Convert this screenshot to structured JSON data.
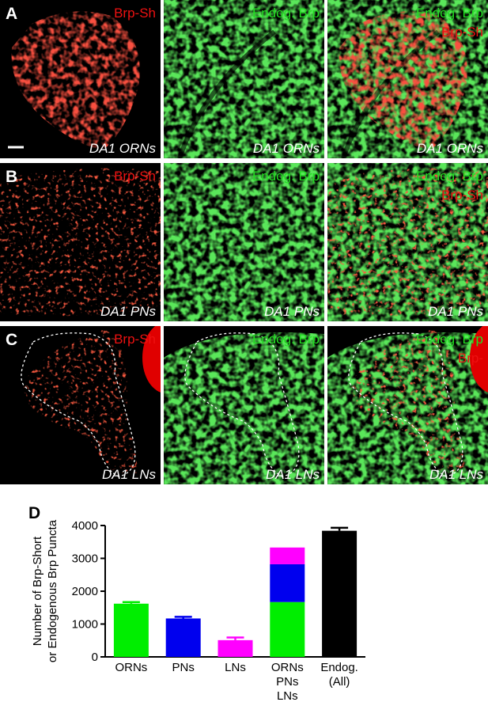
{
  "panels": [
    {
      "label": "A",
      "cells": [
        {
          "top": [
            "Brp-Sh"
          ],
          "bottom": "DA1 ORNs"
        },
        {
          "top": [
            "Endog. Brp"
          ],
          "bottom": "DA1 ORNs"
        },
        {
          "top": [
            "Endog. Brp",
            "Brp-Sh"
          ],
          "bottom": "DA1 ORNs"
        }
      ]
    },
    {
      "label": "B",
      "cells": [
        {
          "top": [
            "Brp-Sh"
          ],
          "bottom": "DA1 PNs"
        },
        {
          "top": [
            "Endog. Brp"
          ],
          "bottom": "DA1 PNs"
        },
        {
          "top": [
            "Endog. Brp",
            "Brp-Sh"
          ],
          "bottom": "DA1 PNs"
        }
      ]
    },
    {
      "label": "C",
      "cells": [
        {
          "top": [
            "Brp-Sh"
          ],
          "bottom": "DA1 LNs"
        },
        {
          "top": [
            "Endog. Brp"
          ],
          "bottom": "DA1 LNs"
        },
        {
          "top": [
            "Endog. Brp",
            "Brp-"
          ],
          "bottom": "DA1 LNs"
        }
      ]
    }
  ],
  "chart_data": {
    "type": "bar",
    "label": "D",
    "stacked": true,
    "ylabel": [
      "Number of Brp-Short",
      "or Endogenous Brp Puncta"
    ],
    "categories": [
      "ORNs",
      "PNs",
      "LNs",
      "ORNs\nPNs\nLNs",
      "Endog.\n(All)"
    ],
    "series": [
      {
        "name": "ORNs",
        "color": "#00ee00",
        "values": [
          1620,
          null,
          null,
          1670,
          null
        ],
        "errors": [
          50,
          null,
          null,
          null,
          null
        ]
      },
      {
        "name": "PNs",
        "color": "#0000ee",
        "values": [
          null,
          1170,
          null,
          1150,
          null
        ],
        "errors": [
          null,
          50,
          null,
          null,
          null
        ]
      },
      {
        "name": "LNs",
        "color": "#ff00ff",
        "values": [
          null,
          null,
          510,
          510,
          null
        ],
        "errors": [
          null,
          null,
          80,
          null,
          null
        ]
      },
      {
        "name": "Endog.",
        "color": "#000000",
        "values": [
          null,
          null,
          null,
          null,
          3840
        ],
        "errors": [
          null,
          null,
          null,
          null,
          90
        ]
      }
    ],
    "ylim": [
      0,
      4000
    ],
    "yticks": [
      0,
      1000,
      2000,
      3000,
      4000
    ]
  }
}
